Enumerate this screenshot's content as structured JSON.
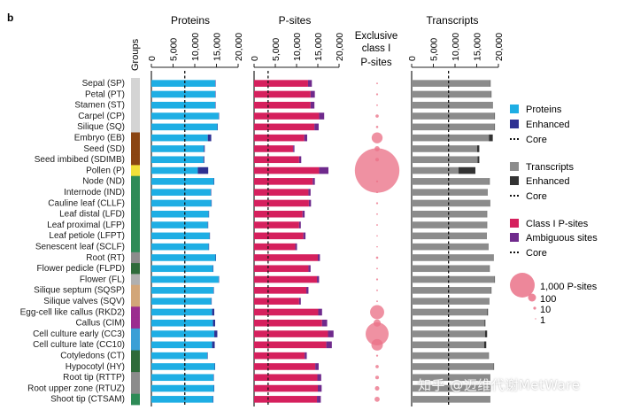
{
  "panel_letter": "b",
  "groups_label": "Groups",
  "watermark": "知乎 @迈维代谢MetWare",
  "colors": {
    "proteins": "#1eaee4",
    "proteins_enhanced": "#2e3192",
    "psites": "#d5205d",
    "psites_ambiguous": "#6f2a8c",
    "transcripts": "#8c8c8c",
    "transcripts_enhanced": "#333333",
    "bubble": "#ea7288",
    "axis": "#222222"
  },
  "legends": {
    "proteins": [
      "Proteins",
      "Enhanced",
      "Core"
    ],
    "transcripts": [
      "Transcripts",
      "Enhanced",
      "Core"
    ],
    "psites": [
      "Class I P-sites",
      "Ambiguous sites",
      "Core"
    ],
    "bubble_sizes": [
      "1,000 P-sites",
      "100",
      "10",
      "1"
    ]
  },
  "chart_data": {
    "type": "bar",
    "title": "",
    "categories": [
      "Sepal (SP)",
      "Petal (PT)",
      "Stamen (ST)",
      "Carpel (CP)",
      "Silique (SQ)",
      "Embryo (EB)",
      "Seed (SD)",
      "Seed imbibed (SDIMB)",
      "Pollen (P)",
      "Node (ND)",
      "Internode (IND)",
      "Cauline leaf (CLLF)",
      "Leaf distal (LFD)",
      "Leaf proximal (LFP)",
      "Leaf petiole (LFPT)",
      "Senescent leaf (SCLF)",
      "Root (RT)",
      "Flower pedicle (FLPD)",
      "Flower (FL)",
      "Silique septum (SQSP)",
      "Silique valves (SQV)",
      "Egg-cell like callus (RKD2)",
      "Callus (CIM)",
      "Cell culture early (CC3)",
      "Cell culture late (CC10)",
      "Cotyledons (CT)",
      "Hypocotyl (HY)",
      "Root tip (RTTP)",
      "Root upper zone (RTUZ)",
      "Shoot tip (CTSAM)"
    ],
    "group_colors": [
      "#d4d4d4",
      "#d4d4d4",
      "#d4d4d4",
      "#d4d4d4",
      "#d4d4d4",
      "#8b4513",
      "#8b4513",
      "#8b4513",
      "#f2e03a",
      "#2e8b57",
      "#2e8b57",
      "#2e8b57",
      "#2e8b57",
      "#2e8b57",
      "#2e8b57",
      "#2e8b57",
      "#8c8c8c",
      "#2e6b3a",
      "#b0b0b0",
      "#d2a679",
      "#d2a679",
      "#9b2d8f",
      "#9b2d8f",
      "#3b9fd6",
      "#3b9fd6",
      "#2e6b3a",
      "#2e6b3a",
      "#8c8c8c",
      "#8c8c8c",
      "#2e8b57"
    ],
    "panels": [
      {
        "title": "Proteins",
        "xlim": [
          0,
          20000
        ],
        "ticks": [
          "0",
          "5,000",
          "10,000",
          "15,000",
          "20,000"
        ],
        "core": 7700,
        "series": [
          {
            "name": "Proteins",
            "values": [
              14700,
              14700,
              14700,
              15500,
              15200,
              13000,
              12100,
              12000,
              10700,
              14400,
              13700,
              13800,
              13200,
              13000,
              13400,
              13200,
              14800,
              14200,
              15500,
              14300,
              13800,
              14000,
              14200,
              14500,
              14000,
              12900,
              14600,
              14300,
              14400,
              14200
            ]
          },
          {
            "name": "Enhanced",
            "values": [
              100,
              100,
              100,
              100,
              100,
              800,
              200,
              200,
              2400,
              100,
              100,
              100,
              100,
              100,
              100,
              100,
              100,
              100,
              100,
              100,
              100,
              500,
              500,
              700,
              600,
              100,
              100,
              100,
              100,
              100
            ]
          }
        ]
      },
      {
        "title": "P-sites",
        "xlim": [
          0,
          20000
        ],
        "ticks": [
          "0",
          "5,000",
          "10,000",
          "15,000",
          "20,000"
        ],
        "core": 3300,
        "series": [
          {
            "name": "Class I P-sites",
            "values": [
              12700,
              13300,
              13300,
              15300,
              14200,
              11800,
              9200,
              10600,
              15300,
              13800,
              12800,
              12900,
              11400,
              10600,
              11600,
              9700,
              15000,
              12800,
              14800,
              12300,
              10600,
              15100,
              16000,
              17400,
              17000,
              11900,
              14400,
              14900,
              15000,
              14800
            ]
          },
          {
            "name": "Ambiguous sites",
            "values": [
              900,
              1000,
              900,
              1200,
              1000,
              700,
              300,
              500,
              2200,
              500,
              500,
              500,
              500,
              400,
              500,
              400,
              500,
              500,
              500,
              500,
              400,
              900,
              1200,
              1300,
              1300,
              500,
              800,
              900,
              900,
              900
            ]
          }
        ]
      },
      {
        "title": "Exclusive class I P-sites",
        "type": "bubble",
        "values": [
          2,
          3,
          2,
          8,
          4,
          90,
          20,
          10,
          1500,
          3,
          2,
          3,
          2,
          2,
          1,
          1,
          4,
          2,
          3,
          2,
          2,
          150,
          40,
          400,
          100,
          3,
          8,
          10,
          15,
          20
        ]
      },
      {
        "title": "Transcripts",
        "xlim": [
          0,
          20000
        ],
        "ticks": [
          "0",
          "5,000",
          "10,000",
          "15,000",
          "20,000"
        ],
        "core": 8500,
        "series": [
          {
            "name": "Transcripts",
            "values": [
              18100,
              18300,
              18600,
              19100,
              19100,
              17800,
              15100,
              15200,
              10800,
              17900,
              17400,
              18000,
              17300,
              17300,
              17200,
              17600,
              18800,
              17900,
              19100,
              18300,
              17800,
              17400,
              16800,
              16900,
              16700,
              17700,
              18900,
              18000,
              18100,
              18000
            ]
          },
          {
            "name": "Enhanced",
            "values": [
              100,
              100,
              100,
              100,
              100,
              900,
              500,
              400,
              3900,
              100,
              100,
              100,
              100,
              100,
              100,
              100,
              100,
              100,
              100,
              100,
              100,
              200,
              200,
              500,
              500,
              100,
              100,
              100,
              100,
              100
            ]
          }
        ]
      }
    ]
  }
}
